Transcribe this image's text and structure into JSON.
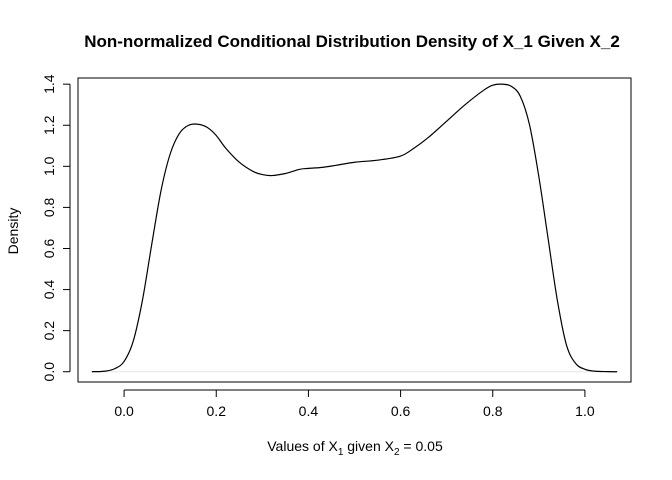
{
  "chart_data": {
    "type": "line",
    "title": "Non-normalized Conditional Distribution Density of X_1 Given X_2",
    "xlabel": {
      "prefix": "Values of  X",
      "sub1": "1",
      "middle": " given X",
      "sub2": "2",
      "suffix": " = 0.05"
    },
    "ylabel": "Density",
    "xlim": [
      -0.1,
      1.1
    ],
    "ylim": [
      -0.05,
      1.43
    ],
    "xticks": [
      0.0,
      0.2,
      0.4,
      0.6,
      0.8,
      1.0
    ],
    "xtick_labels": [
      "0.0",
      "0.2",
      "0.4",
      "0.6",
      "0.8",
      "1.0"
    ],
    "yticks": [
      0.0,
      0.2,
      0.4,
      0.6,
      0.8,
      1.0,
      1.2,
      1.4
    ],
    "ytick_labels": [
      "0.0",
      "0.2",
      "0.4",
      "0.6",
      "0.8",
      "1.0",
      "1.2",
      "1.4"
    ],
    "baseline": 0,
    "series": [
      {
        "x": [
          -0.07,
          -0.04,
          -0.02,
          0.0,
          0.02,
          0.04,
          0.06,
          0.08,
          0.1,
          0.12,
          0.14,
          0.16,
          0.18,
          0.2,
          0.22,
          0.25,
          0.28,
          0.3,
          0.32,
          0.35,
          0.38,
          0.4,
          0.43,
          0.46,
          0.5,
          0.55,
          0.6,
          0.63,
          0.66,
          0.7,
          0.74,
          0.78,
          0.8,
          0.82,
          0.84,
          0.86,
          0.88,
          0.9,
          0.92,
          0.94,
          0.96,
          0.98,
          1.0,
          1.02,
          1.05,
          1.07
        ],
        "y": [
          0.0,
          0.003,
          0.015,
          0.05,
          0.15,
          0.35,
          0.62,
          0.88,
          1.06,
          1.16,
          1.2,
          1.205,
          1.19,
          1.15,
          1.09,
          1.02,
          0.975,
          0.96,
          0.955,
          0.965,
          0.985,
          0.99,
          0.995,
          1.005,
          1.02,
          1.03,
          1.05,
          1.09,
          1.14,
          1.22,
          1.3,
          1.37,
          1.395,
          1.4,
          1.39,
          1.34,
          1.2,
          0.95,
          0.65,
          0.35,
          0.13,
          0.04,
          0.012,
          0.003,
          0.0005,
          0.0
        ]
      }
    ],
    "colors": {
      "line": "#000000",
      "baseline": "#e6e6e6"
    }
  }
}
